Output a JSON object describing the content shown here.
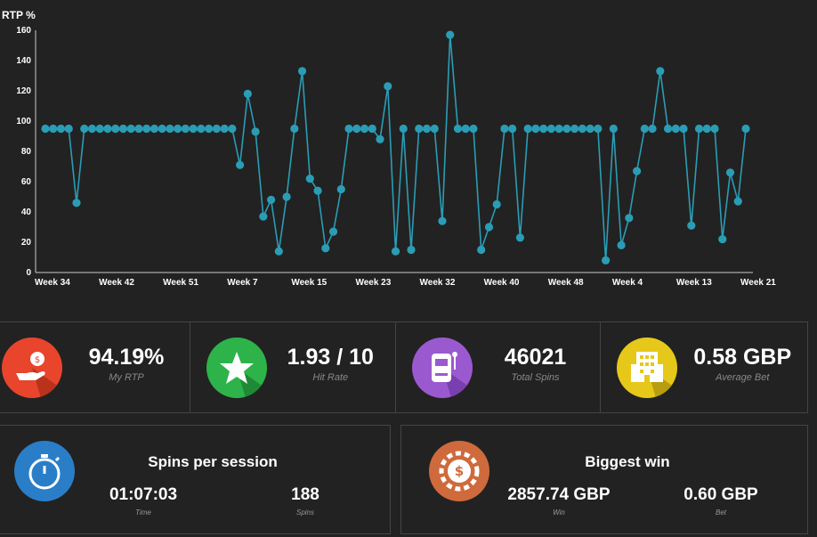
{
  "chart_data": {
    "type": "line",
    "ylabel": "RTP %",
    "ylim": [
      0,
      160
    ],
    "yticks": [
      0,
      20,
      40,
      60,
      80,
      100,
      120,
      140,
      160
    ],
    "x_tick_labels": [
      "Week 34",
      "Week 42",
      "Week 51",
      "Week 7",
      "Week 15",
      "Week 23",
      "Week 32",
      "Week 40",
      "Week 48",
      "Week 4",
      "Week 13",
      "Week 21"
    ],
    "series": [
      {
        "color": "#2a9db5",
        "values": [
          95,
          95,
          95,
          95,
          46,
          95,
          95,
          95,
          95,
          95,
          95,
          95,
          95,
          95,
          95,
          95,
          95,
          95,
          95,
          95,
          95,
          95,
          95,
          95,
          95,
          71,
          118,
          93,
          37,
          48,
          14,
          50,
          95,
          133,
          62,
          54,
          16,
          27,
          55,
          95,
          95,
          95,
          95,
          88,
          123,
          14,
          95,
          15,
          95,
          95,
          95,
          34,
          157,
          95,
          95,
          95,
          15,
          30,
          45,
          95,
          95,
          23,
          95,
          95,
          95,
          95,
          95,
          95,
          95,
          95,
          95,
          95,
          8,
          95,
          18,
          36,
          67,
          95,
          95,
          133,
          95,
          95,
          95,
          31,
          95,
          95,
          95,
          22,
          66,
          47,
          95
        ]
      }
    ]
  },
  "stats": [
    {
      "value": "94.19%",
      "label": "My RTP",
      "icon": "money-hand-icon",
      "color": "#e8452c"
    },
    {
      "value": "1.93 / 10",
      "label": "Hit Rate",
      "icon": "star-icon",
      "color": "#2db34a"
    },
    {
      "value": "46021",
      "label": "Total Spins",
      "icon": "slot-machine-icon",
      "color": "#9b59d0"
    },
    {
      "value": "0.58 GBP",
      "label": "Average Bet",
      "icon": "building-icon",
      "color": "#e6c81a"
    }
  ],
  "spins_panel": {
    "title": "Spins per session",
    "icon": "stopwatch-icon",
    "color": "#2a7ec8",
    "time_value": "01:07:03",
    "time_label": "Time",
    "spins_value": "188",
    "spins_label": "Spins"
  },
  "win_panel": {
    "title": "Biggest win",
    "icon": "casino-chip-icon",
    "color": "#cf6a3c",
    "win_value": "2857.74 GBP",
    "win_label": "Win",
    "bet_value": "0.60 GBP",
    "bet_label": "Bet"
  }
}
